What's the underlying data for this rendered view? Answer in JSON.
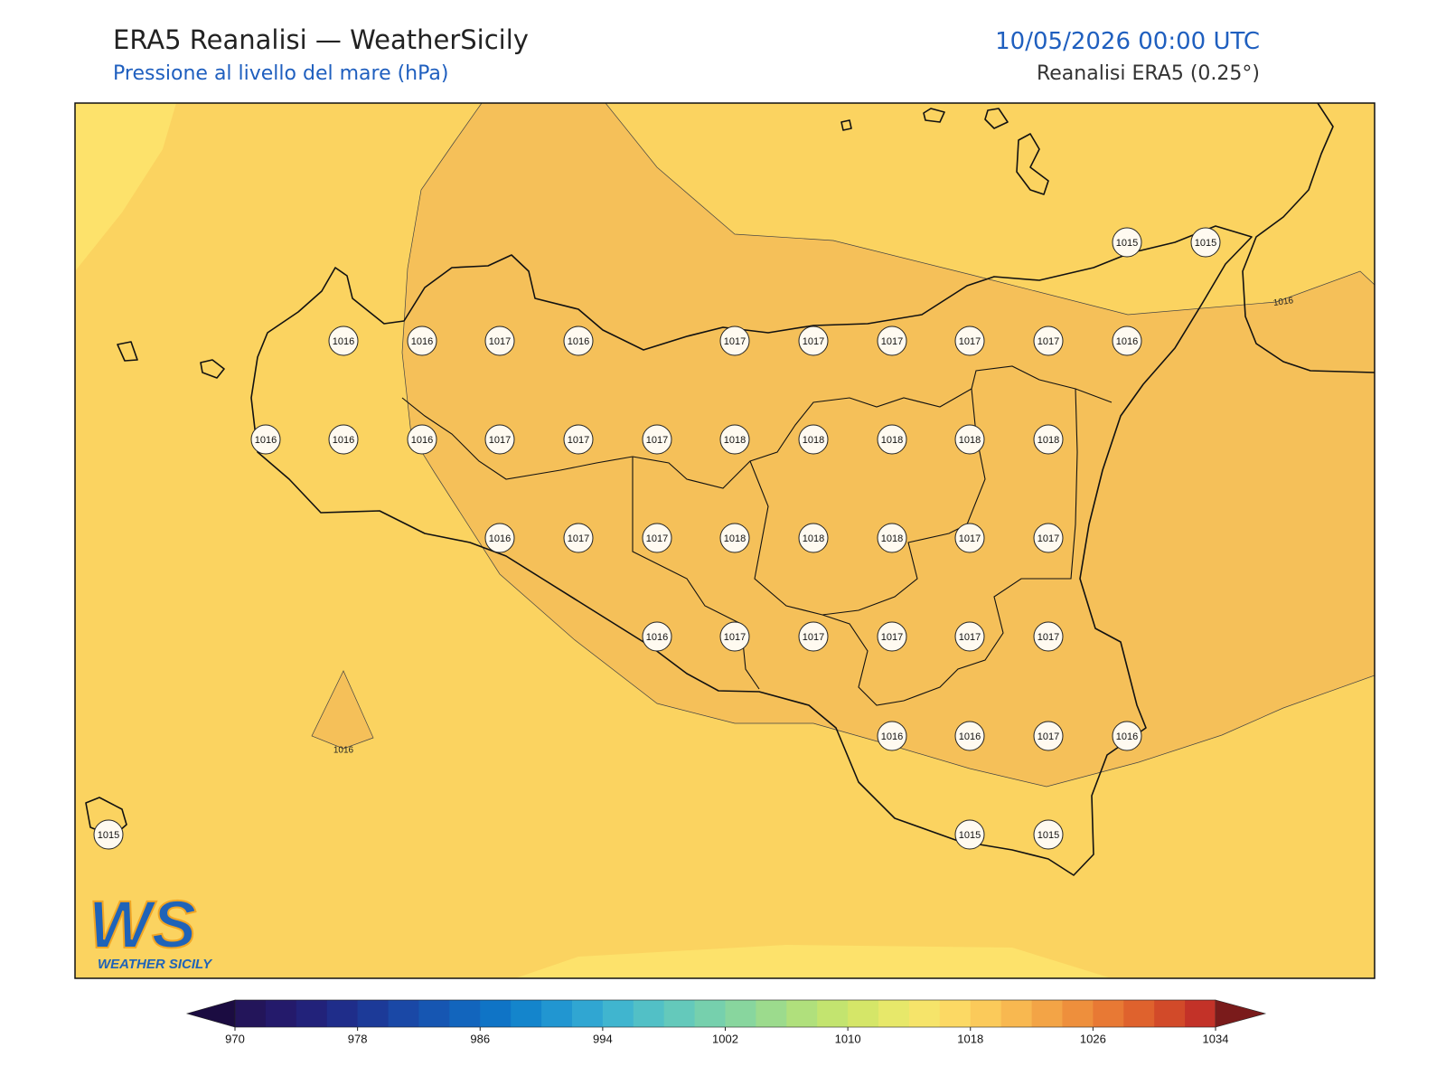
{
  "header": {
    "title": "ERA5 Reanalisi — WeatherSicily",
    "subtitle": "Pressione al livello del mare (hPa)",
    "datetime": "10/05/2026 00:00 UTC",
    "source": "Reanalisi ERA5 (0.25°)"
  },
  "stations": [
    [
      1015,
      1015
    ],
    [
      1016,
      1016,
      1017,
      1016,
      1017,
      1017,
      1017,
      1017,
      1017,
      1016
    ],
    [
      1016,
      1016,
      1016,
      1017,
      1017,
      1017,
      1018,
      1018,
      1018,
      1018,
      1018
    ],
    [
      1016,
      1017,
      1017,
      1018,
      1018,
      1018,
      1017,
      1017
    ],
    [
      1016,
      1017,
      1017,
      1017,
      1017,
      1017
    ],
    [
      1016,
      1016,
      1017,
      1016
    ],
    [
      1015,
      1015,
      1015
    ]
  ],
  "contour_labels": [
    1016,
    1016
  ],
  "logo": {
    "mark": "WS",
    "name": "WEATHER SICILY"
  },
  "colorbar": {
    "ticks": [
      970,
      978,
      986,
      994,
      1002,
      1010,
      1018,
      1026,
      1034
    ],
    "under_color": "#1b0c41",
    "over_color": "#7a1b1b",
    "colors": [
      "#23155a",
      "#241a6b",
      "#22227a",
      "#1f2d8a",
      "#1c3a98",
      "#1a48a6",
      "#1656b2",
      "#1265bd",
      "#0f74c6",
      "#1485cc",
      "#2196d1",
      "#30a6d2",
      "#40b5cf",
      "#52c0c6",
      "#64c9bb",
      "#76d0ad",
      "#88d69e",
      "#9cdb8d",
      "#b0e07c",
      "#c3e46f",
      "#d5e668",
      "#e7e86a",
      "#f6e46a",
      "#fcd964",
      "#fbca5a",
      "#f8b850",
      "#f3a446",
      "#ee8f3c",
      "#e87934",
      "#df622d",
      "#d24a29",
      "#c33228"
    ]
  }
}
